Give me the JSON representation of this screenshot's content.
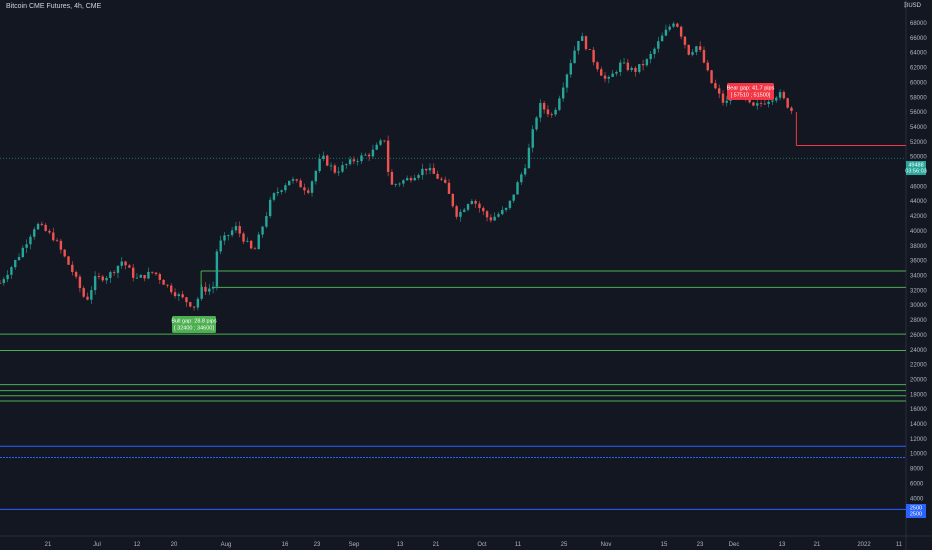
{
  "header": {
    "title": "Bitcoin CME Futures, 4h, CME",
    "currency": "₿USD"
  },
  "colors": {
    "background": "#131722",
    "up": "#26a69a",
    "down": "#ef5350",
    "bull_gap_line": "#4caf50",
    "bear_gap_line": "#f23645",
    "blue_line": "#2962ff",
    "dotted_line": "#26a69a",
    "text": "#b2b5be"
  },
  "chart_data": {
    "type": "candlestick",
    "title": "Bitcoin CME Futures, 4h, CME",
    "x_ticks": [
      "21",
      "Jul",
      "12",
      "20",
      "Aug",
      "16",
      "23",
      "Sep",
      "13",
      "21",
      "Oct",
      "11",
      "25",
      "Nov",
      "15",
      "23",
      "Dec",
      "13",
      "21",
      "2022",
      "11"
    ],
    "y_ticks": [
      "68000",
      "66000",
      "64000",
      "62000",
      "60000",
      "58000",
      "56000",
      "54000",
      "52000",
      "50000",
      "48000",
      "46000",
      "44000",
      "42000",
      "40000",
      "38000",
      "36000",
      "34000",
      "32000",
      "30000",
      "28000",
      "26000",
      "24000",
      "22000",
      "20000",
      "18000",
      "16000",
      "14000",
      "12000",
      "10000",
      "8000",
      "6000",
      "4000",
      "2000"
    ],
    "ylim": [
      0,
      70000
    ],
    "grid": false,
    "price_path": [
      {
        "t": 0,
        "p": 33000
      },
      {
        "t": 2,
        "p": 36500
      },
      {
        "t": 4,
        "p": 41000
      },
      {
        "t": 6,
        "p": 39000
      },
      {
        "t": 8,
        "p": 34500
      },
      {
        "t": 9.5,
        "p": 30500
      },
      {
        "t": 10.5,
        "p": 33500
      },
      {
        "t": 12,
        "p": 34000
      },
      {
        "t": 13.5,
        "p": 36000
      },
      {
        "t": 15,
        "p": 33500
      },
      {
        "t": 17,
        "p": 34500
      },
      {
        "t": 18.5,
        "p": 32500
      },
      {
        "t": 20,
        "p": 31000
      },
      {
        "t": 21.5,
        "p": 29800
      },
      {
        "t": 22.2,
        "p": 32100
      },
      {
        "t": 23.5,
        "p": 32300
      },
      {
        "t": 24,
        "p": 38000
      },
      {
        "t": 26,
        "p": 40500
      },
      {
        "t": 28,
        "p": 37000
      },
      {
        "t": 30,
        "p": 44500
      },
      {
        "t": 32,
        "p": 47000
      },
      {
        "t": 34,
        "p": 45500
      },
      {
        "t": 35.5,
        "p": 50000
      },
      {
        "t": 37,
        "p": 48000
      },
      {
        "t": 39,
        "p": 49500
      },
      {
        "t": 41,
        "p": 50500
      },
      {
        "t": 42.5,
        "p": 52500
      },
      {
        "t": 43,
        "p": 46000
      },
      {
        "t": 45,
        "p": 47000
      },
      {
        "t": 47,
        "p": 48500
      },
      {
        "t": 49,
        "p": 46500
      },
      {
        "t": 50.5,
        "p": 42000
      },
      {
        "t": 52,
        "p": 44500
      },
      {
        "t": 54,
        "p": 41500
      },
      {
        "t": 56,
        "p": 43000
      },
      {
        "t": 58,
        "p": 49000
      },
      {
        "t": 59.5,
        "p": 57000
      },
      {
        "t": 61,
        "p": 55500
      },
      {
        "t": 62.5,
        "p": 61000
      },
      {
        "t": 64,
        "p": 66500
      },
      {
        "t": 65.5,
        "p": 63000
      },
      {
        "t": 67,
        "p": 60000
      },
      {
        "t": 68.5,
        "p": 62500
      },
      {
        "t": 70,
        "p": 61500
      },
      {
        "t": 71.5,
        "p": 63000
      },
      {
        "t": 73,
        "p": 66000
      },
      {
        "t": 74.5,
        "p": 68500
      },
      {
        "t": 76,
        "p": 64000
      },
      {
        "t": 77,
        "p": 65000
      },
      {
        "t": 78.5,
        "p": 60000
      },
      {
        "t": 80,
        "p": 57000
      },
      {
        "t": 81.5,
        "p": 59000
      },
      {
        "t": 83,
        "p": 56500
      },
      {
        "t": 84.5,
        "p": 57500
      },
      {
        "t": 86,
        "p": 58500
      },
      {
        "t": 87.5,
        "p": 56000
      }
    ],
    "horizontal_lines": [
      {
        "from_t": 22.2,
        "price": 34600,
        "color": "bull"
      },
      {
        "from_t": 23.5,
        "price": 32400,
        "color": "bull"
      },
      {
        "from_t": 0,
        "price": 26100,
        "color": "bull"
      },
      {
        "from_t": 0,
        "price": 23900,
        "color": "bull"
      },
      {
        "from_t": 0,
        "price": 19300,
        "color": "bull"
      },
      {
        "from_t": 0,
        "price": 18500,
        "color": "bull"
      },
      {
        "from_t": 0,
        "price": 17800,
        "color": "bull"
      },
      {
        "from_t": 0,
        "price": 17100,
        "color": "bull"
      },
      {
        "from_t": 87.9,
        "price": 51500,
        "color": "bear"
      },
      {
        "from_t": 0,
        "price": 11000,
        "color": "blue"
      },
      {
        "from_t": 0,
        "price": 9500,
        "color": "blue_dotted"
      },
      {
        "from_t": 0,
        "price": 2500,
        "color": "blue"
      }
    ],
    "annotations": [
      {
        "kind": "bull_gap",
        "text": [
          "Bull gap: 28.8 pips",
          "[ 32400 ; 34600]"
        ]
      },
      {
        "kind": "bear_gap",
        "text": [
          "Bear gap: 41.7 pips",
          "[ 57510 ; 51500]"
        ]
      }
    ],
    "price_badges": [
      {
        "price": 49800,
        "text": [
          "49488",
          "03:56:03"
        ],
        "color": "#26a69a"
      },
      {
        "price": 2000,
        "text": [
          "2500",
          "2500"
        ],
        "color": "#2962ff"
      }
    ]
  }
}
